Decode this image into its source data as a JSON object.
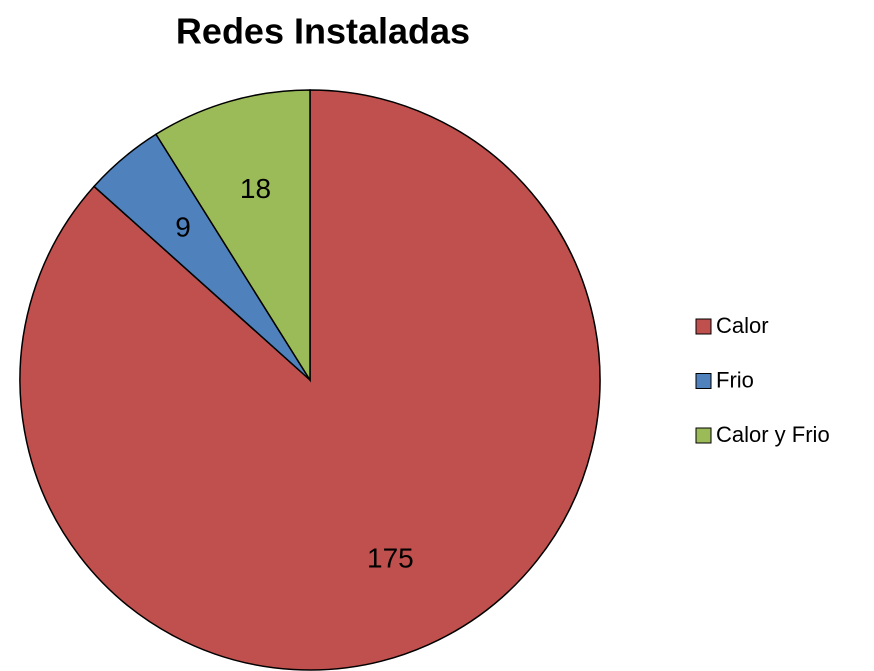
{
  "chart_data": {
    "type": "pie",
    "title": "Redes Instaladas",
    "categories": [
      "Calor",
      "Frio",
      "Calor y Frio"
    ],
    "values": [
      175,
      9,
      18
    ],
    "colors": [
      "#c0504d",
      "#4f81bd",
      "#9bbb59"
    ],
    "legend": "right"
  }
}
